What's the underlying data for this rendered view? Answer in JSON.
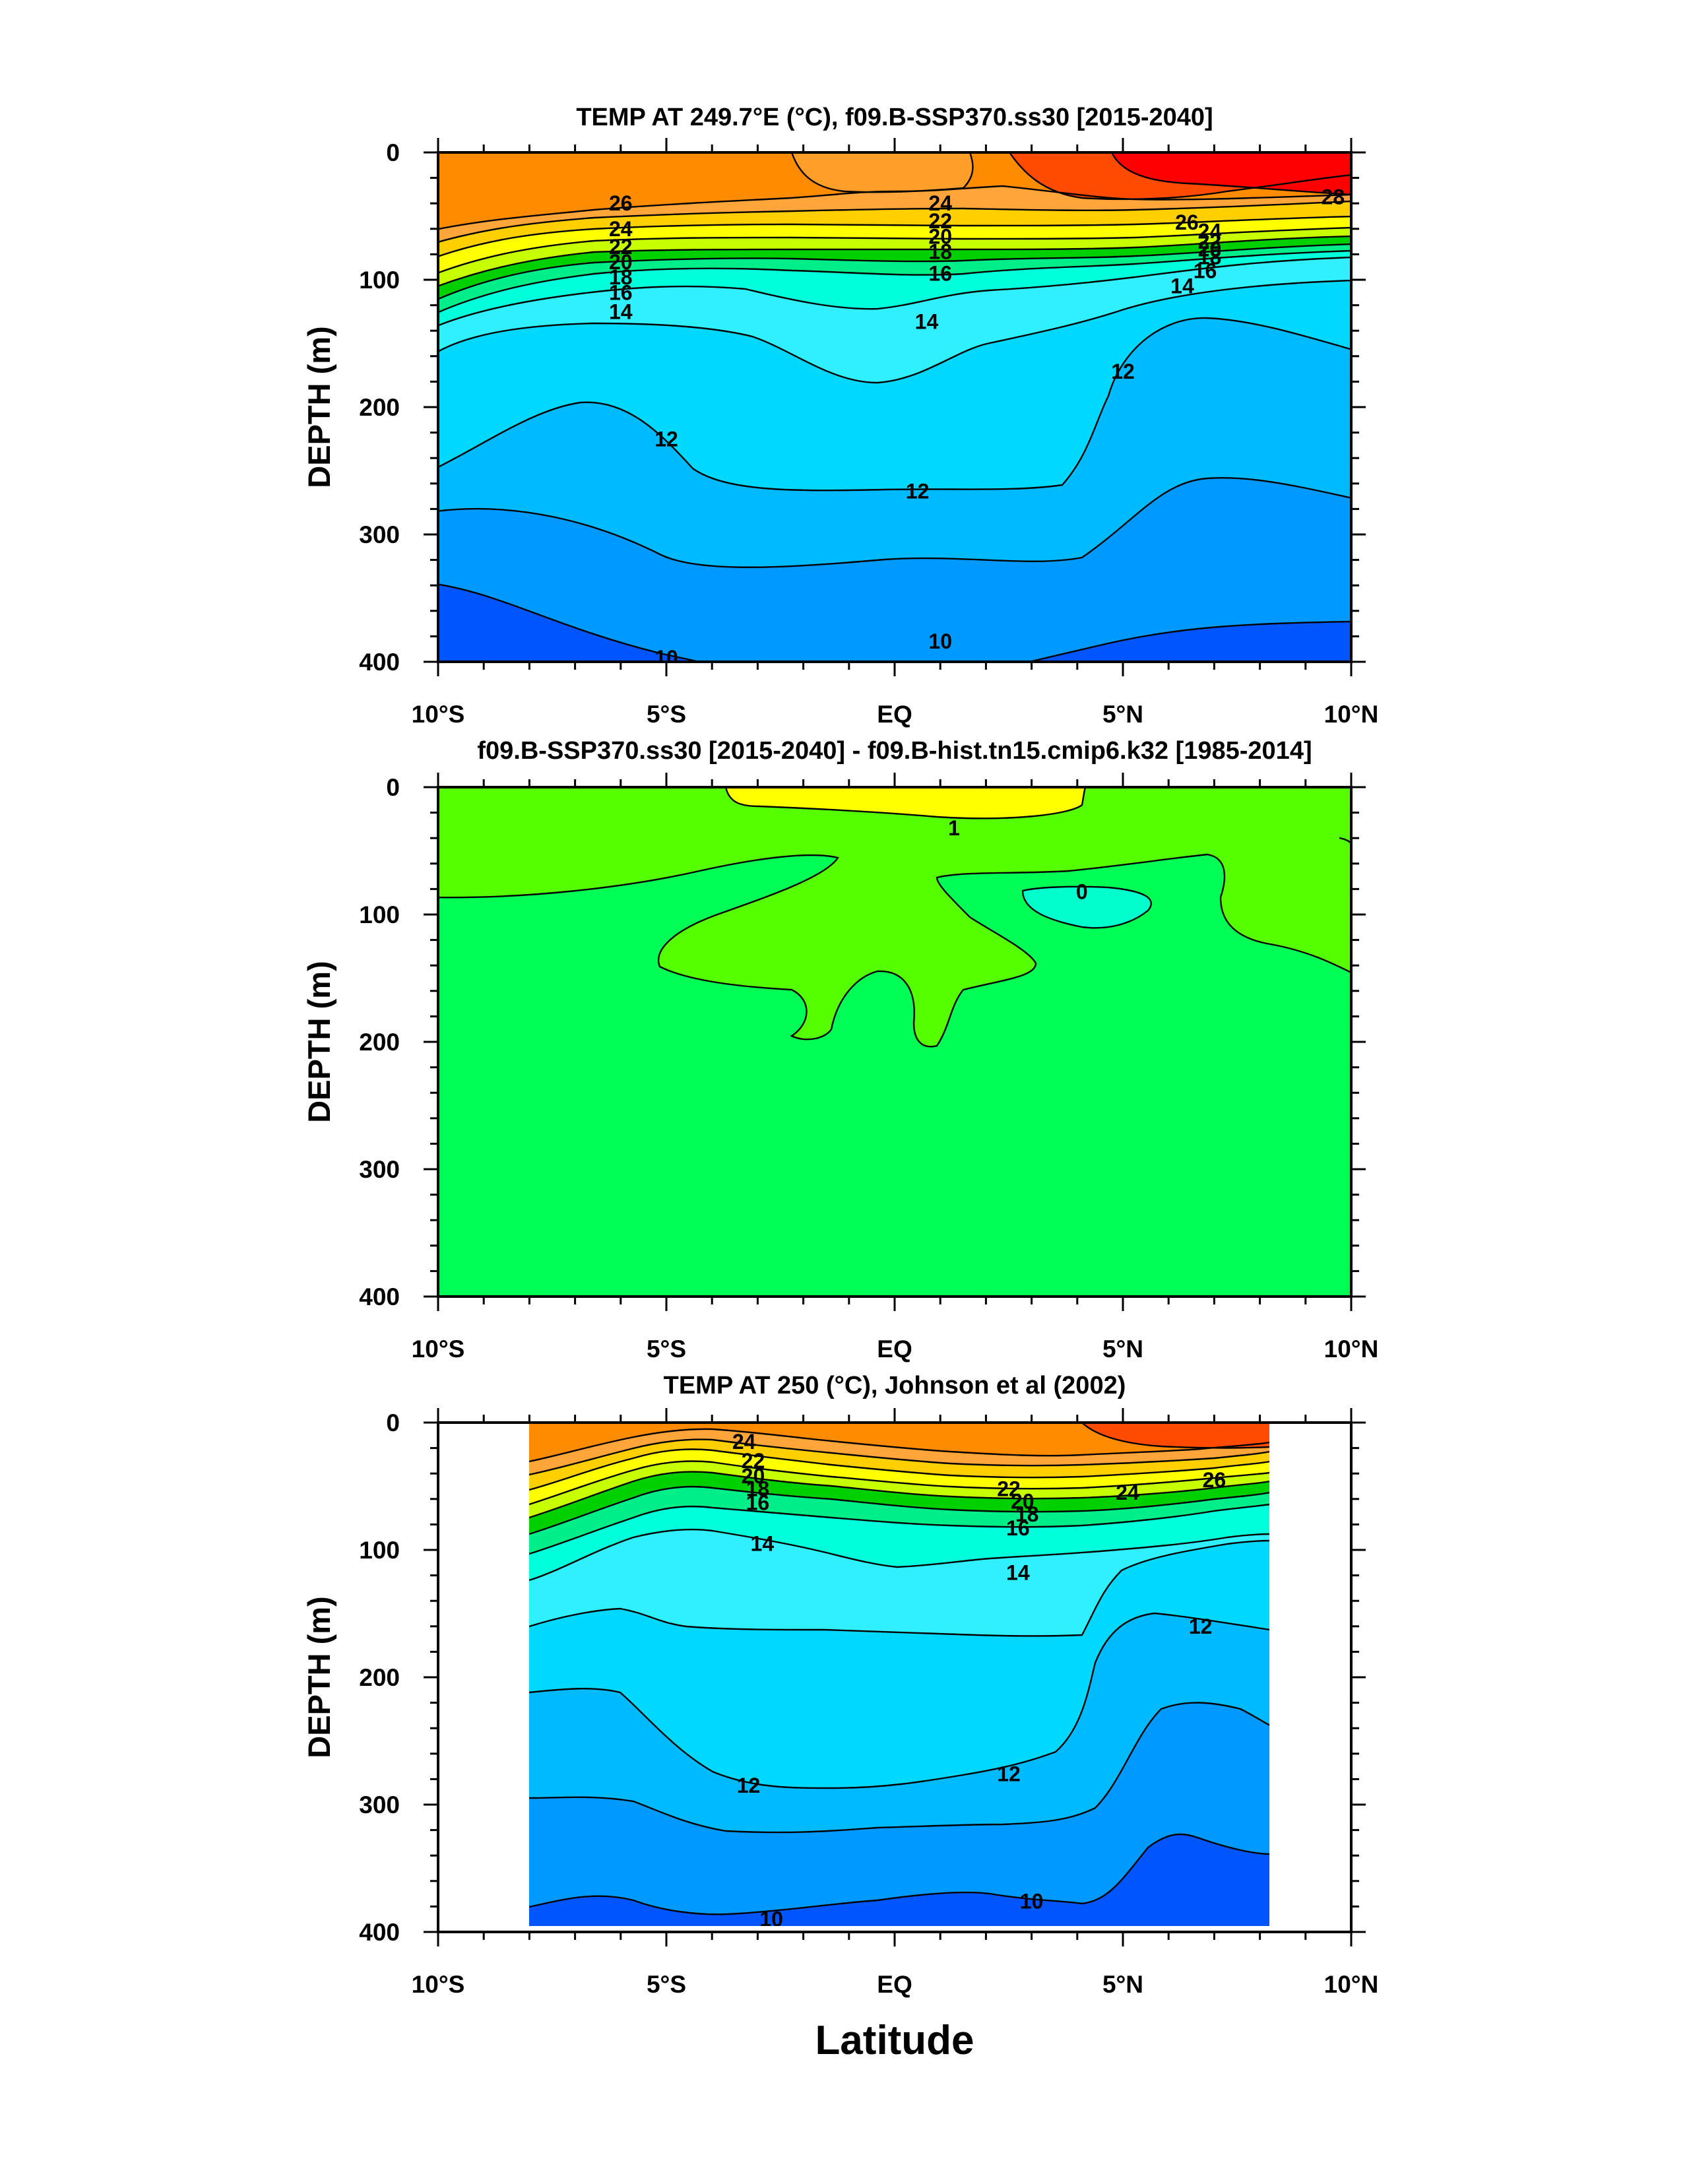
{
  "panels": [
    {
      "title": "TEMP AT 249.7°E (°C), f09.B-SSP370.ss30 [2015-2040]",
      "ylabel": "DEPTH (m)",
      "y_ticks": [
        "0",
        "100",
        "200",
        "300",
        "400"
      ],
      "x_ticks": [
        "10°S",
        "5°S",
        "EQ",
        "5°N",
        "10°N"
      ]
    },
    {
      "title": "f09.B-SSP370.ss30 [2015-2040] - f09.B-hist.tn15.cmip6.k32 [1985-2014]",
      "ylabel": "DEPTH (m)",
      "y_ticks": [
        "0",
        "100",
        "200",
        "300",
        "400"
      ],
      "x_ticks": [
        "10°S",
        "5°S",
        "EQ",
        "5°N",
        "10°N"
      ]
    },
    {
      "title": "TEMP AT 250 (°C), Johnson et al (2002)",
      "ylabel": "DEPTH (m)",
      "y_ticks": [
        "0",
        "100",
        "200",
        "300",
        "400"
      ],
      "x_ticks": [
        "10°S",
        "5°S",
        "EQ",
        "5°N",
        "10°N"
      ]
    }
  ],
  "xlabel": "Latitude",
  "colors": {
    "c28": "#ff0000",
    "c26": "#ff4b00",
    "c24": "#ff8c00",
    "c22": "#ffa53a",
    "c20": "#ffcf00",
    "c18": "#ffff00",
    "c17": "#c8ff00",
    "c16": "#00d000",
    "c15": "#00ee8a",
    "c14": "#00ffdb",
    "c13": "#30f0ff",
    "c12": "#00d8ff",
    "c11": "#00baff",
    "c10": "#0099ff",
    "c9": "#0055ff",
    "d1": "#ffff00",
    "d05": "#55ff00",
    "d0": "#00ff55",
    "dneg": "#00ffcc"
  },
  "chart_data": [
    {
      "type": "contour",
      "x_range": [
        -10,
        10
      ],
      "y_range": [
        400,
        0
      ],
      "contour_levels": [
        28,
        26,
        24,
        22,
        20,
        18,
        16,
        14,
        12,
        10
      ],
      "contour_labels": [
        {
          "text": "26",
          "x": -6,
          "y": 40
        },
        {
          "text": "24",
          "x": -6,
          "y": 60
        },
        {
          "text": "22",
          "x": -6,
          "y": 74
        },
        {
          "text": "20",
          "x": -6,
          "y": 86
        },
        {
          "text": "18",
          "x": -6,
          "y": 98
        },
        {
          "text": "16",
          "x": -6,
          "y": 110
        },
        {
          "text": "14",
          "x": -6,
          "y": 125
        },
        {
          "text": "24",
          "x": 1,
          "y": 40
        },
        {
          "text": "22",
          "x": 1,
          "y": 54
        },
        {
          "text": "20",
          "x": 1,
          "y": 66
        },
        {
          "text": "18",
          "x": 1,
          "y": 78
        },
        {
          "text": "16",
          "x": 1,
          "y": 95
        },
        {
          "text": "14",
          "x": 0.7,
          "y": 133
        },
        {
          "text": "12",
          "x": -5,
          "y": 225
        },
        {
          "text": "12",
          "x": 0.5,
          "y": 266
        },
        {
          "text": "12",
          "x": 5,
          "y": 172
        },
        {
          "text": "10",
          "x": 1,
          "y": 384
        },
        {
          "text": "10",
          "x": -5,
          "y": 397
        },
        {
          "text": "28",
          "x": 9.6,
          "y": 35
        },
        {
          "text": "26",
          "x": 6.4,
          "y": 55
        },
        {
          "text": "24",
          "x": 6.9,
          "y": 62
        },
        {
          "text": "22",
          "x": 6.9,
          "y": 70
        },
        {
          "text": "20",
          "x": 6.9,
          "y": 76
        },
        {
          "text": "18",
          "x": 6.9,
          "y": 82
        },
        {
          "text": "16",
          "x": 6.8,
          "y": 93
        },
        {
          "text": "14",
          "x": 6.3,
          "y": 105
        }
      ]
    },
    {
      "type": "contour",
      "x_range": [
        -10,
        10
      ],
      "y_range": [
        400,
        0
      ],
      "contour_levels": [
        1,
        0.5,
        0
      ],
      "contour_labels": [
        {
          "text": "1",
          "x": 1.3,
          "y": 32
        },
        {
          "text": "0",
          "x": 4.1,
          "y": 82
        }
      ]
    },
    {
      "type": "contour",
      "x_range": [
        -10,
        10
      ],
      "y_range": [
        400,
        0
      ],
      "data_x_range": [
        -8,
        8.2
      ],
      "contour_levels": [
        28,
        26,
        24,
        22,
        20,
        18,
        16,
        14,
        12,
        10
      ],
      "contour_labels": [
        {
          "text": "24",
          "x": -3.3,
          "y": 15
        },
        {
          "text": "22",
          "x": -3.1,
          "y": 30
        },
        {
          "text": "20",
          "x": -3.1,
          "y": 42
        },
        {
          "text": "18",
          "x": -3.0,
          "y": 52
        },
        {
          "text": "16",
          "x": -3.0,
          "y": 63
        },
        {
          "text": "14",
          "x": -2.9,
          "y": 95
        },
        {
          "text": "22",
          "x": 2.5,
          "y": 52
        },
        {
          "text": "20",
          "x": 2.8,
          "y": 62
        },
        {
          "text": "18",
          "x": 2.9,
          "y": 72
        },
        {
          "text": "16",
          "x": 2.7,
          "y": 83
        },
        {
          "text": "14",
          "x": 2.7,
          "y": 118
        },
        {
          "text": "24",
          "x": 5.1,
          "y": 55
        },
        {
          "text": "26",
          "x": 7.0,
          "y": 45
        },
        {
          "text": "12",
          "x": 6.7,
          "y": 160
        },
        {
          "text": "12",
          "x": -3.2,
          "y": 285
        },
        {
          "text": "12",
          "x": 2.5,
          "y": 276
        },
        {
          "text": "10",
          "x": -2.7,
          "y": 390
        },
        {
          "text": "10",
          "x": 3.0,
          "y": 376
        }
      ]
    }
  ]
}
